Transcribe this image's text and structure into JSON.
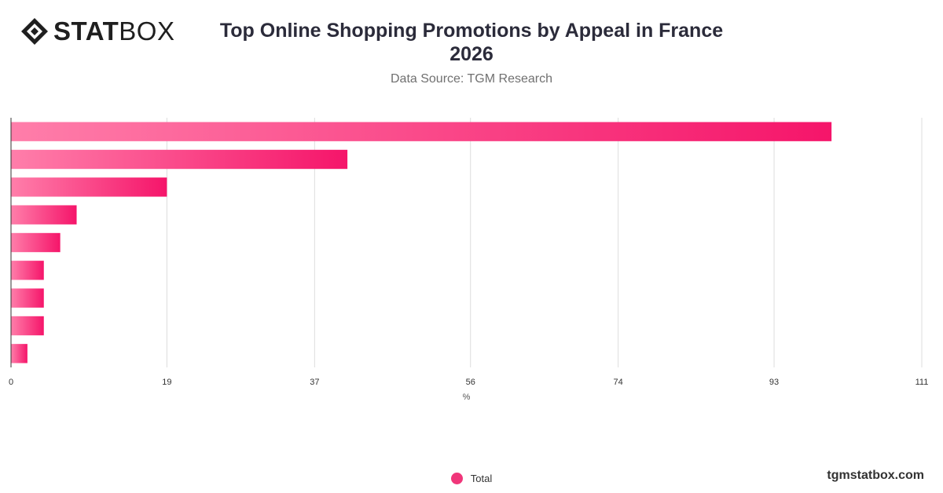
{
  "brand": {
    "logo_bold": "STAT",
    "logo_light": "BOX",
    "watermark": "tgmstatbox.com"
  },
  "header": {
    "title_line1": "Top Online Shopping Promotions by Appeal in France",
    "title_line2": "2026",
    "subtitle": "Data Source: TGM Research"
  },
  "colors": {
    "bar_start": "#ff7eaa",
    "bar_end": "#f5156a",
    "grid": "#dddddd",
    "axis": "#333333",
    "legend_dot": "#f0367a"
  },
  "legend": {
    "items": [
      {
        "label": "Total"
      }
    ]
  },
  "chart_data": {
    "type": "bar",
    "orientation": "horizontal",
    "xlabel": "%",
    "ylabel": "",
    "xlim": [
      0,
      111
    ],
    "x_ticks": [
      0,
      19,
      37,
      56,
      74,
      93,
      111
    ],
    "grid": true,
    "legend_position": "bottom",
    "series": [
      {
        "name": "Total",
        "values": [
          100,
          41,
          19,
          8,
          6,
          4,
          4,
          4,
          2
        ]
      }
    ]
  }
}
